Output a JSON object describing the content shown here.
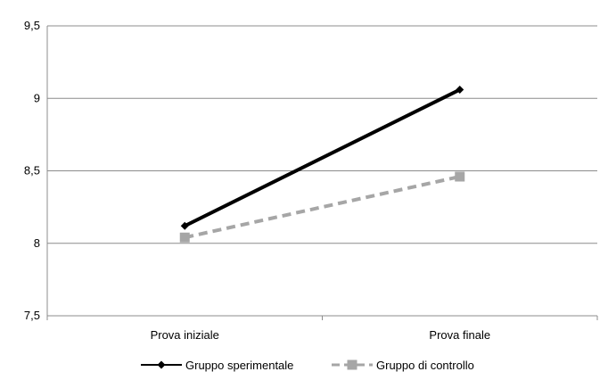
{
  "chart_data": {
    "type": "line",
    "categories": [
      "Prova iniziale",
      "Prova finale"
    ],
    "series": [
      {
        "name": "Gruppo sperimentale",
        "values": [
          8.12,
          9.06
        ],
        "color": "#000000",
        "style": "solid",
        "marker": "diamond"
      },
      {
        "name": "Gruppo di controllo",
        "values": [
          8.04,
          8.46
        ],
        "color": "#a6a6a6",
        "style": "dashed",
        "marker": "square"
      }
    ],
    "y_ticks": [
      "7,5",
      "8",
      "8,5",
      "9",
      "9,5"
    ],
    "ylim": [
      7.5,
      9.5
    ],
    "grid": true,
    "legend_position": "bottom"
  }
}
